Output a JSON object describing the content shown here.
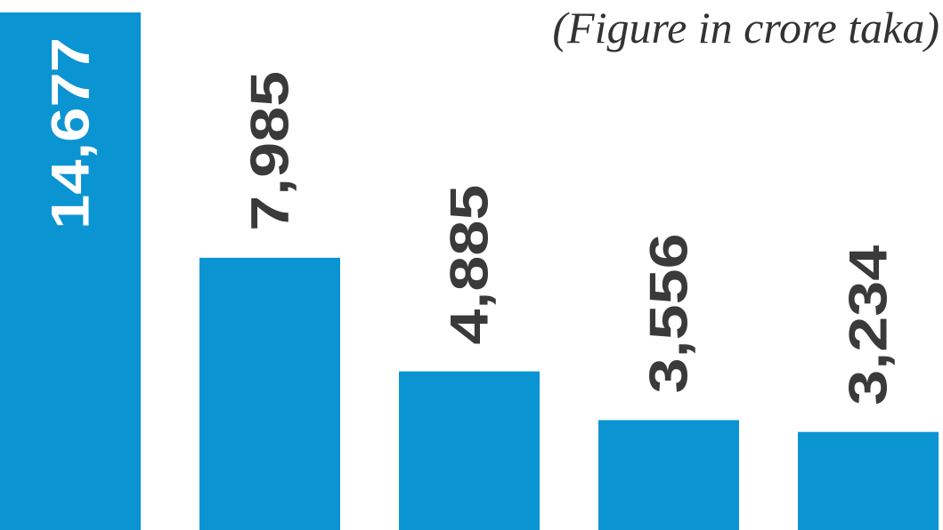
{
  "chart_data": {
    "type": "bar",
    "subtitle": "(Figure in crore taka)",
    "values": [
      14677,
      7985,
      4885,
      3556,
      3234
    ],
    "value_labels": [
      "14,677",
      "7,985",
      "4,885",
      "3,556",
      "3,234"
    ],
    "color": "#0b94d2"
  }
}
